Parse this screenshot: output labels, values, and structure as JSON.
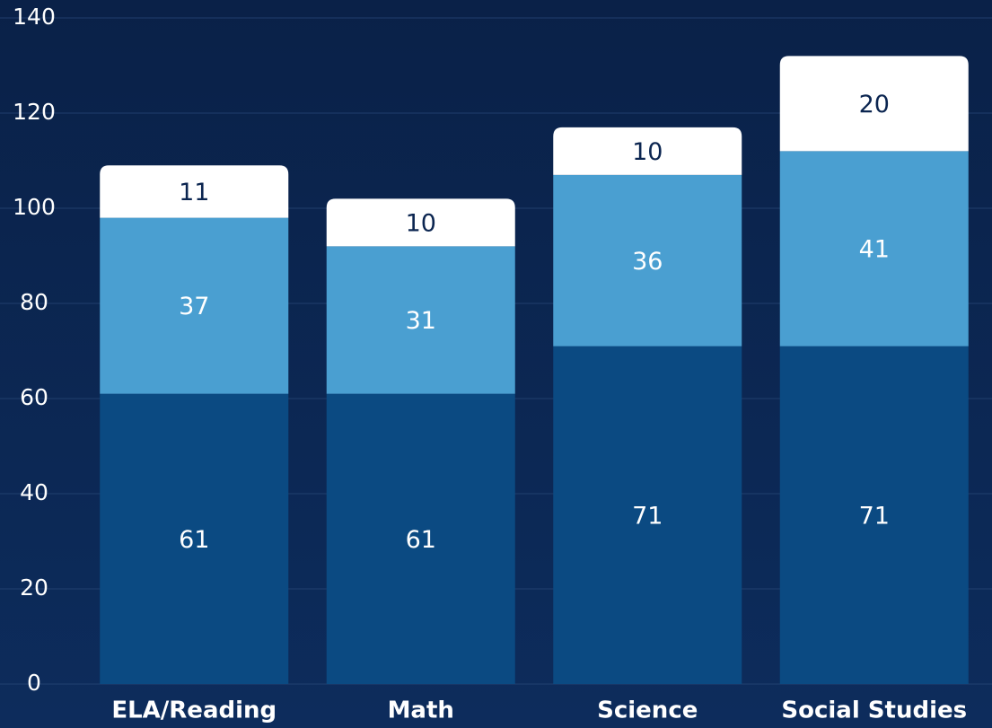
{
  "chart_data": {
    "type": "stacked_bar",
    "categories": [
      "ELA/Reading",
      "Math",
      "Science",
      "Social Studies"
    ],
    "series": [
      {
        "color": "#0b4a82",
        "label_color": "#ffffff",
        "values": [
          61,
          61,
          71,
          71
        ]
      },
      {
        "color": "#4a9fd1",
        "label_color": "#ffffff",
        "values": [
          37,
          31,
          36,
          41
        ]
      },
      {
        "color": "#ffffff",
        "label_color": "#0b2550",
        "values": [
          11,
          10,
          10,
          20
        ]
      }
    ],
    "ylim": [
      0,
      140
    ],
    "yticks": [
      0,
      20,
      40,
      60,
      80,
      100,
      120,
      140
    ],
    "grid": true
  }
}
